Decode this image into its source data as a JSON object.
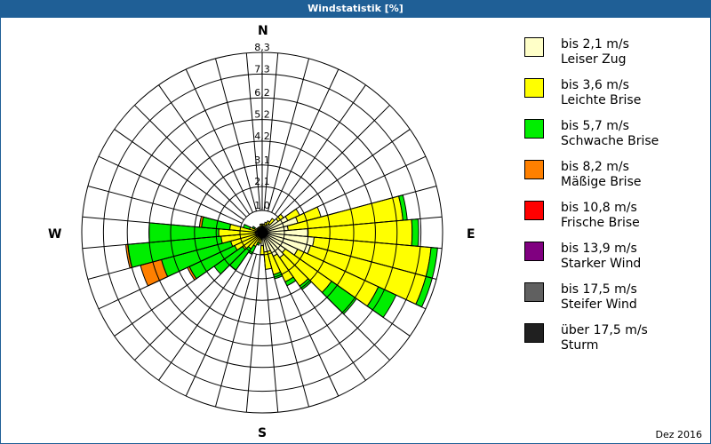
{
  "window": {
    "title": "Windstatistik [%]"
  },
  "footer": {
    "period": "Dez 2016"
  },
  "compass": {
    "n": "N",
    "e": "E",
    "s": "S",
    "w": "W"
  },
  "legend": [
    {
      "speed": "bis 2,1 m/s",
      "name": "Leiser Zug",
      "color": "#ffffc8"
    },
    {
      "speed": "bis 3,6 m/s",
      "name": "Leichte Brise",
      "color": "#ffff00"
    },
    {
      "speed": "bis 5,7 m/s",
      "name": "Schwache Brise",
      "color": "#00ee00"
    },
    {
      "speed": "bis 8,2 m/s",
      "name": "Mäßige Brise",
      "color": "#ff8000"
    },
    {
      "speed": "bis 10,8 m/s",
      "name": "Frische Brise",
      "color": "#ff0000"
    },
    {
      "speed": "bis 13,9 m/s",
      "name": "Starker Wind",
      "color": "#800080"
    },
    {
      "speed": "bis 17,5 m/s",
      "name": "Steifer Wind",
      "color": "#606060"
    },
    {
      "speed": "über 17,5 m/s",
      "name": "Sturm",
      "color": "#202020"
    }
  ],
  "chart_data": {
    "type": "wind_rose",
    "title": "Windstatistik [%]",
    "period": "Dez 2016",
    "unit": "%",
    "ring_labels": [
      "1,0",
      "2,1",
      "3,1",
      "4,2",
      "5,2",
      "6,2",
      "7,3",
      "8,3"
    ],
    "ring_values": [
      1.0,
      2.1,
      3.1,
      4.2,
      5.2,
      6.2,
      7.3,
      8.3
    ],
    "rmax": 8.3,
    "sectors_deg": 10,
    "series": [
      "bis 2,1 m/s",
      "bis 3,6 m/s",
      "bis 5,7 m/s",
      "bis 8,2 m/s",
      "bis 10,8 m/s",
      "bis 13,9 m/s",
      "bis 17,5 m/s",
      "über 17,5 m/s"
    ],
    "directions": [
      {
        "deg": 0,
        "values": [
          0.3,
          0.1,
          0,
          0,
          0,
          0,
          0,
          0
        ]
      },
      {
        "deg": 10,
        "values": [
          0.3,
          0.1,
          0,
          0,
          0,
          0,
          0,
          0
        ]
      },
      {
        "deg": 20,
        "values": [
          0.3,
          0.2,
          0,
          0,
          0,
          0,
          0,
          0
        ]
      },
      {
        "deg": 30,
        "values": [
          0.4,
          0.2,
          0,
          0,
          0,
          0,
          0,
          0
        ]
      },
      {
        "deg": 40,
        "values": [
          0.5,
          0.3,
          0,
          0,
          0,
          0,
          0,
          0
        ]
      },
      {
        "deg": 50,
        "values": [
          0.9,
          0.3,
          0,
          0,
          0,
          0,
          0,
          0
        ]
      },
      {
        "deg": 60,
        "values": [
          1.3,
          0.6,
          0,
          0,
          0,
          0,
          0,
          0
        ]
      },
      {
        "deg": 70,
        "values": [
          1.7,
          1.1,
          0,
          0,
          0,
          0,
          0,
          0
        ]
      },
      {
        "deg": 80,
        "values": [
          1.2,
          5.3,
          0.2,
          0,
          0,
          0,
          0,
          0
        ]
      },
      {
        "deg": 90,
        "values": [
          2.1,
          4.8,
          0.3,
          0,
          0,
          0,
          0,
          0
        ]
      },
      {
        "deg": 100,
        "values": [
          2.4,
          5.4,
          0.3,
          0,
          0,
          0,
          0,
          0
        ]
      },
      {
        "deg": 110,
        "values": [
          2.3,
          5.5,
          0.3,
          0,
          0,
          0,
          0,
          0
        ]
      },
      {
        "deg": 120,
        "values": [
          1.8,
          4.1,
          0.9,
          0,
          0,
          0,
          0,
          0
        ]
      },
      {
        "deg": 130,
        "values": [
          1.3,
          2.6,
          1.4,
          0,
          0,
          0,
          0,
          0
        ]
      },
      {
        "deg": 140,
        "values": [
          1.4,
          1.6,
          0.2,
          0,
          0,
          0,
          0,
          0
        ]
      },
      {
        "deg": 150,
        "values": [
          1.2,
          1.3,
          0.2,
          0,
          0,
          0,
          0,
          0
        ]
      },
      {
        "deg": 160,
        "values": [
          0.9,
          1.1,
          0.2,
          0,
          0,
          0,
          0,
          0
        ]
      },
      {
        "deg": 170,
        "values": [
          0.9,
          0.8,
          0,
          0,
          0,
          0,
          0,
          0
        ]
      },
      {
        "deg": 180,
        "values": [
          0.6,
          0.4,
          0,
          0,
          0,
          0,
          0,
          0
        ]
      },
      {
        "deg": 190,
        "values": [
          0.3,
          0.2,
          0,
          0,
          0,
          0,
          0,
          0
        ]
      },
      {
        "deg": 200,
        "values": [
          0.2,
          0.3,
          0.1,
          0,
          0,
          0,
          0,
          0
        ]
      },
      {
        "deg": 210,
        "values": [
          0.2,
          0.5,
          0.4,
          0,
          0,
          0,
          0,
          0
        ]
      },
      {
        "deg": 220,
        "values": [
          0.2,
          0.7,
          1.2,
          0,
          0,
          0,
          0,
          0
        ]
      },
      {
        "deg": 230,
        "values": [
          0.2,
          0.9,
          1.6,
          0,
          0,
          0,
          0,
          0
        ]
      },
      {
        "deg": 240,
        "values": [
          0.3,
          1.1,
          2.3,
          0.1,
          0,
          0,
          0,
          0
        ]
      },
      {
        "deg": 250,
        "values": [
          0.3,
          1.2,
          3.3,
          1.0,
          0,
          0,
          0,
          0
        ]
      },
      {
        "deg": 260,
        "values": [
          0.3,
          1.6,
          4.3,
          0.1,
          0,
          0,
          0,
          0
        ]
      },
      {
        "deg": 270,
        "values": [
          0.3,
          1.7,
          3.2,
          0,
          0,
          0,
          0,
          0
        ]
      },
      {
        "deg": 280,
        "values": [
          0.3,
          1.2,
          1.3,
          0.1,
          0,
          0,
          0,
          0
        ]
      },
      {
        "deg": 290,
        "values": [
          0.2,
          0.4,
          0.3,
          0,
          0,
          0,
          0,
          0
        ]
      },
      {
        "deg": 300,
        "values": [
          0.2,
          0.2,
          0.1,
          0,
          0,
          0,
          0,
          0
        ]
      },
      {
        "deg": 310,
        "values": [
          0.2,
          0.1,
          0,
          0,
          0,
          0,
          0,
          0
        ]
      },
      {
        "deg": 320,
        "values": [
          0.2,
          0.1,
          0,
          0,
          0,
          0,
          0,
          0
        ]
      },
      {
        "deg": 330,
        "values": [
          0.2,
          0.1,
          0,
          0,
          0,
          0,
          0,
          0
        ]
      },
      {
        "deg": 340,
        "values": [
          0.2,
          0.1,
          0,
          0,
          0,
          0,
          0,
          0
        ]
      },
      {
        "deg": 350,
        "values": [
          0.3,
          0.1,
          0,
          0,
          0,
          0,
          0,
          0
        ]
      }
    ],
    "legend_position": "right",
    "grid": true
  }
}
